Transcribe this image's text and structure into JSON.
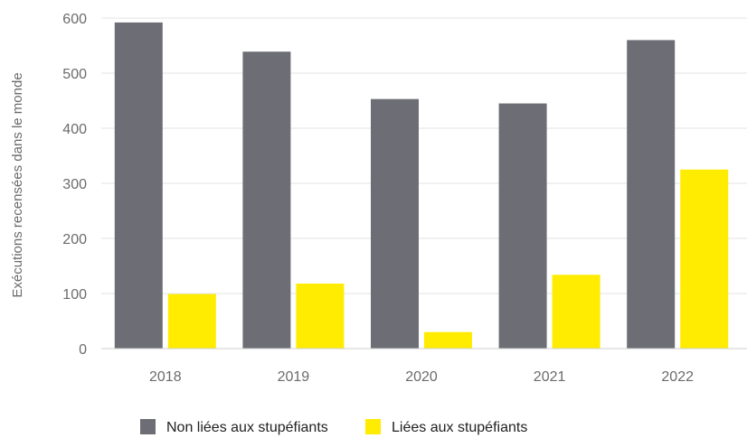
{
  "chart_data": {
    "type": "bar",
    "title": "",
    "xlabel": "",
    "ylabel": "Exécutions recensées dans le monde",
    "categories": [
      "2018",
      "2019",
      "2020",
      "2021",
      "2022"
    ],
    "series": [
      {
        "name": "Non liées aux stupéfiants",
        "color": "#6d6e75",
        "values": [
          592,
          539,
          453,
          445,
          560
        ]
      },
      {
        "name": "Liées aux stupéfiants",
        "color": "#ffec00",
        "values": [
          99,
          118,
          30,
          134,
          325
        ]
      }
    ],
    "ylim": [
      0,
      600
    ],
    "yticks": [
      "0",
      "100",
      "200",
      "300",
      "400",
      "500",
      "600"
    ],
    "grid": true,
    "legend": "bottom"
  }
}
